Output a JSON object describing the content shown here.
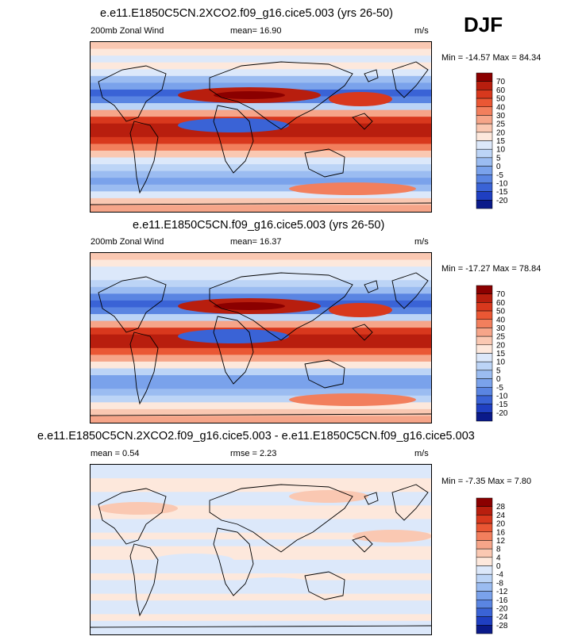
{
  "season": "DJF",
  "panels": [
    {
      "title": "e.e11.E1850C5CN.2XCO2.f09_g16.cice5.003 (yrs 26-50)",
      "left_label": "200mb Zonal Wind",
      "center_label": "mean=  16.90",
      "units": "m/s",
      "minmax": "Min = -14.57 Max =  84.34",
      "levels": [
        "70",
        "60",
        "50",
        "40",
        "30",
        "25",
        "20",
        "15",
        "10",
        "5",
        "0",
        "-5",
        "-10",
        "-15",
        "-20"
      ],
      "colors": [
        "#8b0000",
        "#b81e0e",
        "#d8381d",
        "#ea5734",
        "#f27f5d",
        "#f6a589",
        "#fac8b2",
        "#fde8dc",
        "#dce8fa",
        "#bcd4f6",
        "#9bbcf1",
        "#7aa2eb",
        "#5a85e2",
        "#3a63d6",
        "#1f3fc2",
        "#0a1a8a"
      ],
      "band_profile": [
        6,
        7,
        8,
        7,
        8,
        10,
        11,
        13,
        12,
        9,
        5,
        2,
        1,
        1,
        2,
        4,
        6,
        8,
        9,
        10,
        11,
        10,
        8,
        6,
        5
      ],
      "chart_type": "heatmap"
    },
    {
      "title": "e.e11.E1850C5CN.f09_g16.cice5.003 (yrs 26-50)",
      "left_label": "200mb Zonal Wind",
      "center_label": "mean=  16.37",
      "units": "m/s",
      "minmax": "Min = -17.27 Max =  78.84",
      "levels": [
        "70",
        "60",
        "50",
        "40",
        "30",
        "25",
        "20",
        "15",
        "10",
        "5",
        "0",
        "-5",
        "-10",
        "-15",
        "-20"
      ],
      "colors": [
        "#8b0000",
        "#b81e0e",
        "#d8381d",
        "#ea5734",
        "#f27f5d",
        "#f6a589",
        "#fac8b2",
        "#fde8dc",
        "#dce8fa",
        "#bcd4f6",
        "#9bbcf1",
        "#7aa2eb",
        "#5a85e2",
        "#3a63d6",
        "#1f3fc2",
        "#0a1a8a"
      ],
      "band_profile": [
        6,
        7,
        8,
        8,
        9,
        10,
        12,
        13,
        12,
        9,
        5,
        2,
        1,
        1,
        3,
        5,
        7,
        9,
        11,
        11,
        10,
        9,
        7,
        6,
        5
      ],
      "chart_type": "heatmap"
    },
    {
      "title": "e.e11.E1850C5CN.2XCO2.f09_g16.cice5.003 - e.e11.E1850C5CN.f09_g16.cice5.003",
      "left_label": "mean =   0.54",
      "center_label": "rmse =   2.23",
      "units": "m/s",
      "minmax": "Min = -7.35 Max =   7.80",
      "levels": [
        "28",
        "24",
        "20",
        "16",
        "12",
        "8",
        "4",
        "0",
        "-4",
        "-8",
        "-12",
        "-16",
        "-20",
        "-24",
        "-28"
      ],
      "colors": [
        "#8b0000",
        "#b81e0e",
        "#d8381d",
        "#ea5734",
        "#f27f5d",
        "#f6a589",
        "#fac8b2",
        "#fde8dc",
        "#dce8fa",
        "#bcd4f6",
        "#9bbcf1",
        "#7aa2eb",
        "#5a85e2",
        "#3a63d6",
        "#1f3fc2",
        "#0a1a8a"
      ],
      "band_profile": [
        8,
        8,
        7,
        7,
        8,
        8,
        7,
        7,
        8,
        8,
        7,
        8,
        7,
        7,
        8,
        8,
        7,
        8,
        8,
        7,
        8,
        8,
        7,
        8,
        8
      ],
      "chart_type": "heatmap"
    }
  ],
  "chart_data": [
    {
      "type": "heatmap",
      "title": "e.e11.E1850C5CN.2XCO2.f09_g16.cice5.003 (yrs 26-50)",
      "variable": "200mb Zonal Wind",
      "units": "m/s",
      "mean": 16.9,
      "min": -14.57,
      "max": 84.34,
      "contour_levels": [
        -20,
        -15,
        -10,
        -5,
        0,
        5,
        10,
        15,
        20,
        25,
        30,
        40,
        50,
        60,
        70
      ]
    },
    {
      "type": "heatmap",
      "title": "e.e11.E1850C5CN.f09_g16.cice5.003 (yrs 26-50)",
      "variable": "200mb Zonal Wind",
      "units": "m/s",
      "mean": 16.37,
      "min": -17.27,
      "max": 78.84,
      "contour_levels": [
        -20,
        -15,
        -10,
        -5,
        0,
        5,
        10,
        15,
        20,
        25,
        30,
        40,
        50,
        60,
        70
      ]
    },
    {
      "type": "heatmap",
      "title": "e.e11.E1850C5CN.2XCO2.f09_g16.cice5.003 - e.e11.E1850C5CN.f09_g16.cice5.003",
      "units": "m/s",
      "mean": 0.54,
      "rmse": 2.23,
      "min": -7.35,
      "max": 7.8,
      "contour_levels": [
        -28,
        -24,
        -20,
        -16,
        -12,
        -8,
        -4,
        0,
        4,
        8,
        12,
        16,
        20,
        24,
        28
      ]
    }
  ]
}
